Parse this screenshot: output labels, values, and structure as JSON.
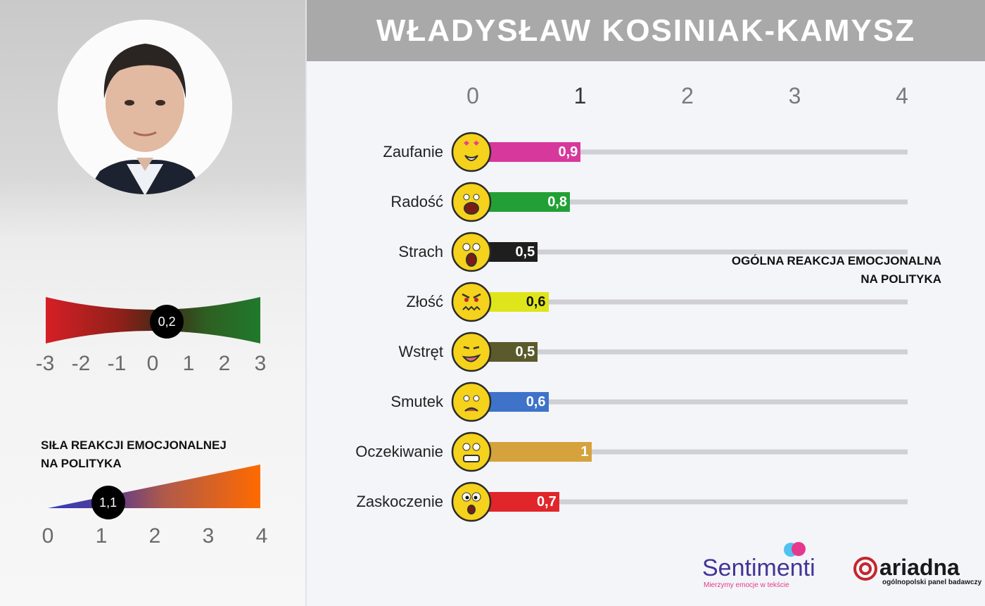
{
  "title": "WŁADYSŁAW KOSINIAK-KAMYSZ",
  "overall_gauge": {
    "title_line1": "OGÓLNA REAKCJA EMOCJONALNA",
    "title_line2": "NA POLITYKA",
    "value": 0.2,
    "value_label": "0,2",
    "range": [
      -3,
      3
    ],
    "ticks": [
      "-3",
      "-2",
      "-1",
      "0",
      "1",
      "2",
      "3"
    ]
  },
  "strength_gauge": {
    "title_line1": "SIŁA REAKCJI EMOCJONALNEJ",
    "title_line2": "NA POLITYKA",
    "value": 1.1,
    "value_label": "1,1",
    "range": [
      0,
      4
    ],
    "ticks": [
      "0",
      "1",
      "2",
      "3",
      "4"
    ]
  },
  "chart_data": {
    "type": "bar",
    "orientation": "horizontal",
    "xlim": [
      0,
      4
    ],
    "x_ticks": [
      "0",
      "1",
      "2",
      "3",
      "4"
    ],
    "grid": false,
    "categories": [
      "Zaufanie",
      "Radość",
      "Strach",
      "Złość",
      "Wstręt",
      "Smutek",
      "Oczekiwanie",
      "Zaskoczenie"
    ],
    "values": [
      0.9,
      0.8,
      0.5,
      0.6,
      0.5,
      0.6,
      1,
      0.7
    ],
    "value_labels": [
      "0,9",
      "0,8",
      "0,5",
      "0,6",
      "0,5",
      "0,6",
      "1",
      "0,7"
    ],
    "colors": [
      "#d6399b",
      "#23a035",
      "#1e1e1e",
      "#dfe51b",
      "#5b5a2c",
      "#3e73c9",
      "#d5a23c",
      "#e0262b"
    ],
    "label_colors": [
      "#ffffff",
      "#ffffff",
      "#ffffff",
      "#111111",
      "#ffffff",
      "#ffffff",
      "#ffffff",
      "#ffffff"
    ]
  },
  "logos": {
    "sentimenti": "Sentimenti",
    "sentimenti_tagline": "Mierzymy emocje w tekście",
    "ariadna": "ariadna",
    "ariadna_tagline": "ogólnopolski panel badawczy"
  }
}
